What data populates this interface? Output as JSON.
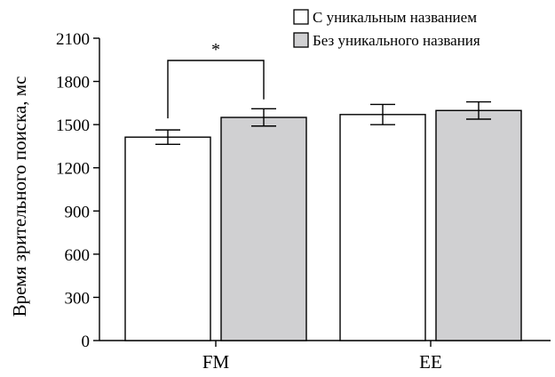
{
  "chart_data": {
    "type": "bar",
    "title": "",
    "xlabel": "",
    "ylabel": "Время зрительного поиска, мс",
    "ylim": [
      0,
      2100
    ],
    "yticks": [
      0,
      300,
      600,
      900,
      1200,
      1500,
      1800,
      2100
    ],
    "categories": [
      "FM",
      "EE"
    ],
    "series": [
      {
        "name": "С уникальным названием",
        "color": "#ffffff",
        "values": [
          1413,
          1570
        ],
        "errors": [
          50,
          70
        ]
      },
      {
        "name": "Без уникального названия",
        "color": "#d0d0d2",
        "values": [
          1550,
          1598
        ],
        "errors": [
          60,
          60
        ]
      }
    ],
    "legend_position": "top-right",
    "grid": false,
    "annotations": [
      {
        "text": "*",
        "category": "FM",
        "between_series": [
          0,
          1
        ]
      }
    ]
  }
}
